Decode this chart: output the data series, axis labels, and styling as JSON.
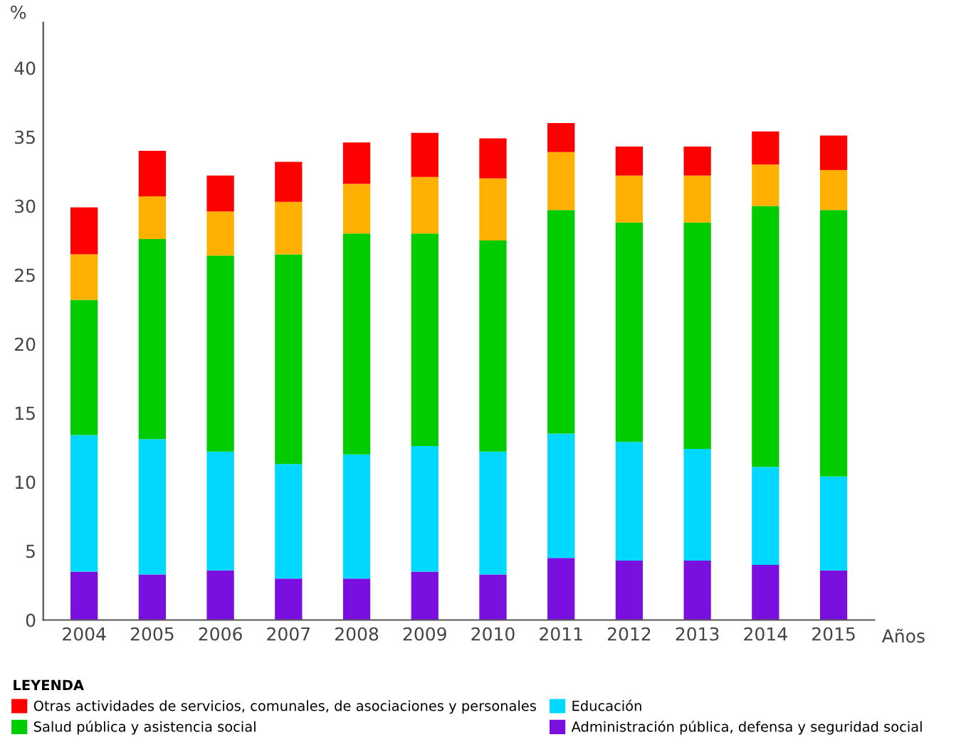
{
  "chart_data": {
    "type": "bar",
    "stacked": true,
    "categories": [
      "2004",
      "2005",
      "2006",
      "2007",
      "2008",
      "2009",
      "2010",
      "2011",
      "2012",
      "2013",
      "2014",
      "2015"
    ],
    "series": [
      {
        "name": "Administración pública, defensa y seguridad social",
        "color": "#7a10e0",
        "values": [
          3.5,
          3.3,
          3.6,
          3.0,
          3.0,
          3.5,
          3.3,
          4.5,
          4.3,
          4.3,
          4.0,
          3.6
        ]
      },
      {
        "name": "Educación",
        "color": "#00d8ff",
        "values": [
          9.9,
          9.8,
          8.6,
          8.3,
          9.0,
          9.1,
          8.9,
          9.0,
          8.6,
          8.1,
          7.1,
          6.8
        ]
      },
      {
        "name": "Salud pública y asistencia social",
        "color": "#00cc00",
        "values": [
          9.8,
          14.5,
          14.2,
          15.2,
          16.0,
          15.4,
          15.3,
          16.2,
          15.9,
          16.4,
          18.9,
          19.3
        ]
      },
      {
        "color": "#ffb000",
        "values": [
          3.3,
          3.1,
          3.2,
          3.8,
          3.6,
          4.1,
          4.5,
          4.2,
          3.4,
          3.4,
          3.0,
          2.9
        ]
      },
      {
        "name": "Otras actividades de servicios, comunales, de asociaciones y personales",
        "color": "#ff0000",
        "values": [
          3.4,
          3.3,
          2.6,
          2.9,
          3.0,
          3.2,
          2.9,
          2.1,
          2.1,
          2.1,
          2.4,
          2.5
        ]
      }
    ],
    "ylabel": "%",
    "xlabel": "Años",
    "legend_title": "LEYENDA",
    "ylim": [
      0,
      43.3
    ],
    "yticks": [
      0,
      5,
      10,
      15,
      20,
      25,
      30,
      35,
      40
    ],
    "grid": false,
    "legend": "bottom"
  }
}
